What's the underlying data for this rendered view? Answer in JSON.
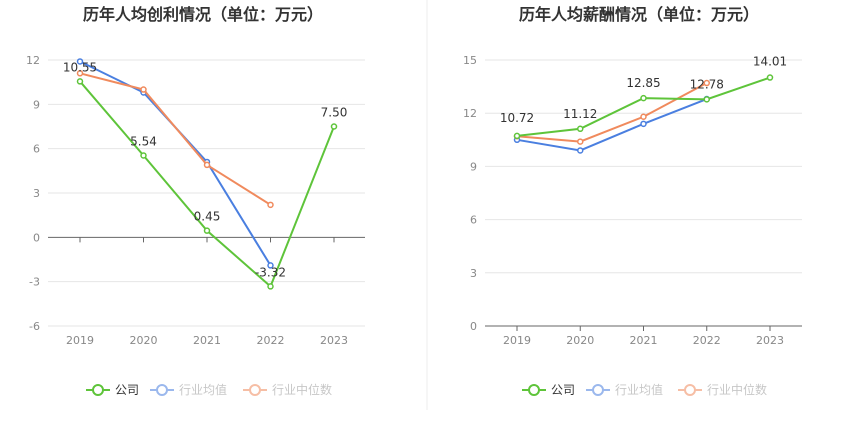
{
  "chart_data": [
    {
      "type": "line",
      "title": "历年人均创利情况（单位：万元）",
      "categories": [
        "2019",
        "2020",
        "2021",
        "2022",
        "2023"
      ],
      "ylim": [
        -6,
        12
      ],
      "yticks": [
        -6,
        -3,
        0,
        3,
        6,
        9,
        12
      ],
      "grid": true,
      "legend_position": "bottom",
      "series": [
        {
          "name": "公司",
          "color": "#5ec43a",
          "values": [
            10.55,
            5.54,
            0.45,
            -3.32,
            7.5
          ],
          "labels": [
            "10.55",
            "5.54",
            "0.45",
            "-3.32",
            "7.50"
          ]
        },
        {
          "name": "行业均值",
          "color": "#4a7fe0",
          "values": [
            11.9,
            9.8,
            5.1,
            -1.9,
            null
          ]
        },
        {
          "name": "行业中位数",
          "color": "#f08a5d",
          "values": [
            11.1,
            10.0,
            4.9,
            2.2,
            null
          ]
        }
      ]
    },
    {
      "type": "line",
      "title": "历年人均薪酬情况（单位：万元）",
      "categories": [
        "2019",
        "2020",
        "2021",
        "2022",
        "2023"
      ],
      "ylim": [
        0,
        15
      ],
      "yticks": [
        0,
        3,
        6,
        9,
        12,
        15
      ],
      "grid": true,
      "legend_position": "bottom",
      "series": [
        {
          "name": "公司",
          "color": "#5ec43a",
          "values": [
            10.72,
            11.12,
            12.85,
            12.78,
            14.01
          ],
          "labels": [
            "10.72",
            "11.12",
            "12.85",
            "12.78",
            "14.01"
          ]
        },
        {
          "name": "行业均值",
          "color": "#4a7fe0",
          "values": [
            10.5,
            9.9,
            11.4,
            12.8,
            null
          ]
        },
        {
          "name": "行业中位数",
          "color": "#f08a5d",
          "values": [
            10.7,
            10.4,
            11.8,
            13.7,
            null
          ]
        }
      ]
    }
  ]
}
